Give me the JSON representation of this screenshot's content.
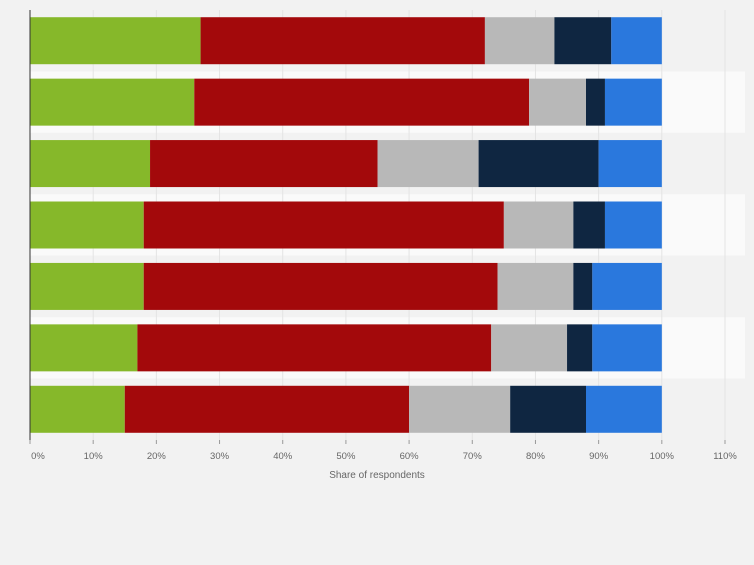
{
  "chart_data": {
    "type": "bar",
    "orientation": "horizontal",
    "stacked": true,
    "xlabel": "Share of respondents",
    "xlim": [
      0,
      110
    ],
    "x_ticks": [
      "0%",
      "10%",
      "20%",
      "30%",
      "40%",
      "50%",
      "60%",
      "70%",
      "80%",
      "90%",
      "100%",
      "110%"
    ],
    "grid": true,
    "categories": [
      "",
      "",
      "",
      "",
      "",
      "",
      ""
    ],
    "series": [
      {
        "color": "#86b82a",
        "values": [
          27,
          26,
          19,
          18,
          18,
          17,
          15
        ]
      },
      {
        "color": "#a3090b",
        "values": [
          45,
          53,
          36,
          57,
          56,
          56,
          45
        ]
      },
      {
        "color": "#b8b8b8",
        "values": [
          11,
          9,
          16,
          11,
          12,
          12,
          16
        ]
      },
      {
        "color": "#0f2641",
        "values": [
          9,
          3,
          19,
          5,
          3,
          4,
          12
        ]
      },
      {
        "color": "#2a78dd",
        "values": [
          8,
          9,
          10,
          9,
          11,
          11,
          12
        ]
      }
    ]
  }
}
